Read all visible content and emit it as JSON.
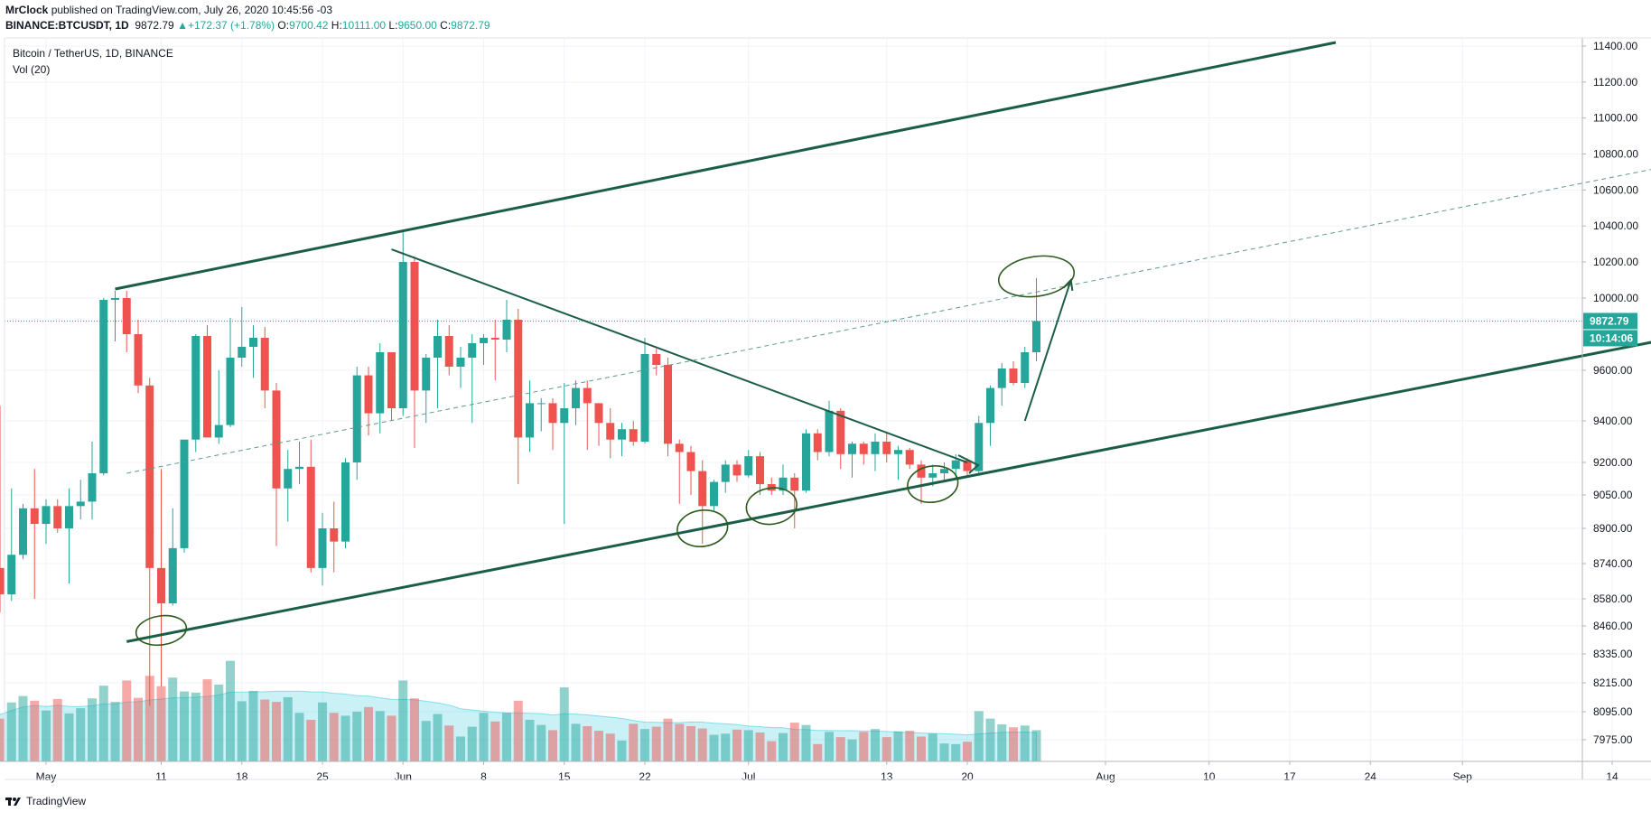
{
  "header": {
    "author": "MrClock",
    "published_text": "published on TradingView.com, July 26, 2020 10:45:56 -03",
    "symbol": "BINANCE:BTCUSDT, 1D",
    "last": "9872.79",
    "change": "+172.37 (+1.78%)",
    "o_label": "O:",
    "o_value": "9700.42",
    "h_label": "H:",
    "h_value": "10111.00",
    "l_label": "L:",
    "l_value": "9650.00",
    "c_label": "C:",
    "c_value": "9872.79"
  },
  "legend": {
    "title": "Bitcoin / TetherUS, 1D, BINANCE",
    "volume": "Vol (20)"
  },
  "price_badge": "9872.79",
  "timer_badge": "10:14:06",
  "footer": {
    "brand": "TradingView"
  },
  "colors": {
    "up": "#26a69a",
    "down": "#ef5350",
    "drawing": "#1b5e48",
    "ma": "#26c6da"
  },
  "chart_data": {
    "type": "candlestick",
    "title": "Bitcoin / TetherUS, 1D, BINANCE",
    "y_ticks": [
      "11400.00",
      "11200.00",
      "11000.00",
      "10800.00",
      "10600.00",
      "10400.00",
      "10200.00",
      "10000.00",
      "9600.00",
      "9400.00",
      "9200.00",
      "9050.00",
      "8900.00",
      "8740.00",
      "8580.00",
      "8460.00",
      "8335.00",
      "8215.00",
      "8095.00",
      "7975.00"
    ],
    "x_ticks": [
      {
        "label": "May",
        "date": "2020-05-01"
      },
      {
        "label": "11",
        "date": "2020-05-11"
      },
      {
        "label": "18",
        "date": "2020-05-18"
      },
      {
        "label": "25",
        "date": "2020-05-25"
      },
      {
        "label": "Jun",
        "date": "2020-06-01"
      },
      {
        "label": "8",
        "date": "2020-06-08"
      },
      {
        "label": "15",
        "date": "2020-06-15"
      },
      {
        "label": "22",
        "date": "2020-06-22"
      },
      {
        "label": "Jul",
        "date": "2020-07-01"
      },
      {
        "label": "13",
        "date": "2020-07-13"
      },
      {
        "label": "20",
        "date": "2020-07-20"
      },
      {
        "label": "Aug",
        "date": "2020-08-01"
      },
      {
        "label": "10",
        "date": "2020-08-10"
      },
      {
        "label": "17",
        "date": "2020-08-17"
      },
      {
        "label": "24",
        "date": "2020-08-24"
      },
      {
        "label": "Sep",
        "date": "2020-09-01"
      },
      {
        "label": "14",
        "date": "2020-09-14"
      }
    ],
    "candles": [
      {
        "d": "2020-04-26",
        "o": 8390,
        "h": 8730,
        "l": 8290,
        "c": 8720
      },
      {
        "d": "2020-04-27",
        "o": 8720,
        "h": 9460,
        "l": 8520,
        "c": 8600
      },
      {
        "d": "2020-04-28",
        "o": 8600,
        "h": 9080,
        "l": 8570,
        "c": 8780
      },
      {
        "d": "2020-04-29",
        "o": 8780,
        "h": 9010,
        "l": 8760,
        "c": 8990
      },
      {
        "d": "2020-04-30",
        "o": 8990,
        "h": 9170,
        "l": 8580,
        "c": 8920
      },
      {
        "d": "2020-05-01",
        "o": 8920,
        "h": 9030,
        "l": 8830,
        "c": 9000
      },
      {
        "d": "2020-05-02",
        "o": 9000,
        "h": 9030,
        "l": 8880,
        "c": 8900
      },
      {
        "d": "2020-05-03",
        "o": 8900,
        "h": 9080,
        "l": 8650,
        "c": 9000
      },
      {
        "d": "2020-05-04",
        "o": 9000,
        "h": 9120,
        "l": 8940,
        "c": 9020
      },
      {
        "d": "2020-05-05",
        "o": 9020,
        "h": 9300,
        "l": 8940,
        "c": 9150
      },
      {
        "d": "2020-05-06",
        "o": 9150,
        "h": 10000,
        "l": 9140,
        "c": 9990
      },
      {
        "d": "2020-05-07",
        "o": 9990,
        "h": 10040,
        "l": 9760,
        "c": 10000
      },
      {
        "d": "2020-05-08",
        "o": 10000,
        "h": 10040,
        "l": 9700,
        "c": 9800
      },
      {
        "d": "2020-05-09",
        "o": 9800,
        "h": 9880,
        "l": 9510,
        "c": 9540
      },
      {
        "d": "2020-05-10",
        "o": 9540,
        "h": 9570,
        "l": 8120,
        "c": 8720
      },
      {
        "d": "2020-05-11",
        "o": 8720,
        "h": 9170,
        "l": 8200,
        "c": 8560
      },
      {
        "d": "2020-05-12",
        "o": 8560,
        "h": 8990,
        "l": 8550,
        "c": 8810
      },
      {
        "d": "2020-05-13",
        "o": 8810,
        "h": 9300,
        "l": 8790,
        "c": 9310
      },
      {
        "d": "2020-05-14",
        "o": 9310,
        "h": 9800,
        "l": 9250,
        "c": 9790
      },
      {
        "d": "2020-05-15",
        "o": 9790,
        "h": 9850,
        "l": 9330,
        "c": 9320
      },
      {
        "d": "2020-05-16",
        "o": 9320,
        "h": 9600,
        "l": 9290,
        "c": 9380
      },
      {
        "d": "2020-05-17",
        "o": 9380,
        "h": 9890,
        "l": 9370,
        "c": 9670
      },
      {
        "d": "2020-05-18",
        "o": 9670,
        "h": 9950,
        "l": 9620,
        "c": 9730
      },
      {
        "d": "2020-05-19",
        "o": 9730,
        "h": 9850,
        "l": 9570,
        "c": 9780
      },
      {
        "d": "2020-05-20",
        "o": 9780,
        "h": 9840,
        "l": 9450,
        "c": 9520
      },
      {
        "d": "2020-05-21",
        "o": 9520,
        "h": 9550,
        "l": 8820,
        "c": 9080
      },
      {
        "d": "2020-05-22",
        "o": 9080,
        "h": 9260,
        "l": 8930,
        "c": 9170
      },
      {
        "d": "2020-05-23",
        "o": 9170,
        "h": 9300,
        "l": 9100,
        "c": 9180
      },
      {
        "d": "2020-05-24",
        "o": 9180,
        "h": 9310,
        "l": 8700,
        "c": 8720
      },
      {
        "d": "2020-05-25",
        "o": 8720,
        "h": 8970,
        "l": 8640,
        "c": 8900
      },
      {
        "d": "2020-05-26",
        "o": 8900,
        "h": 9020,
        "l": 8700,
        "c": 8840
      },
      {
        "d": "2020-05-27",
        "o": 8840,
        "h": 9220,
        "l": 8810,
        "c": 9200
      },
      {
        "d": "2020-05-28",
        "o": 9200,
        "h": 9620,
        "l": 9120,
        "c": 9580
      },
      {
        "d": "2020-05-29",
        "o": 9580,
        "h": 9620,
        "l": 9330,
        "c": 9430
      },
      {
        "d": "2020-05-30",
        "o": 9430,
        "h": 9750,
        "l": 9340,
        "c": 9700
      },
      {
        "d": "2020-05-31",
        "o": 9700,
        "h": 9700,
        "l": 9400,
        "c": 9450
      },
      {
        "d": "2020-06-01",
        "o": 9450,
        "h": 10380,
        "l": 9420,
        "c": 10200
      },
      {
        "d": "2020-06-02",
        "o": 10200,
        "h": 10230,
        "l": 9270,
        "c": 9520
      },
      {
        "d": "2020-06-03",
        "o": 9520,
        "h": 9690,
        "l": 9390,
        "c": 9670
      },
      {
        "d": "2020-06-04",
        "o": 9670,
        "h": 9880,
        "l": 9450,
        "c": 9790
      },
      {
        "d": "2020-06-05",
        "o": 9790,
        "h": 9850,
        "l": 9580,
        "c": 9620
      },
      {
        "d": "2020-06-06",
        "o": 9620,
        "h": 9730,
        "l": 9530,
        "c": 9670
      },
      {
        "d": "2020-06-07",
        "o": 9670,
        "h": 9800,
        "l": 9390,
        "c": 9750
      },
      {
        "d": "2020-06-08",
        "o": 9750,
        "h": 9800,
        "l": 9630,
        "c": 9780
      },
      {
        "d": "2020-06-09",
        "o": 9780,
        "h": 9880,
        "l": 9560,
        "c": 9770
      },
      {
        "d": "2020-06-10",
        "o": 9770,
        "h": 9990,
        "l": 9700,
        "c": 9880
      },
      {
        "d": "2020-06-11",
        "o": 9880,
        "h": 9940,
        "l": 9100,
        "c": 9320
      },
      {
        "d": "2020-06-12",
        "o": 9320,
        "h": 9560,
        "l": 9250,
        "c": 9470
      },
      {
        "d": "2020-06-13",
        "o": 9470,
        "h": 9490,
        "l": 9350,
        "c": 9470
      },
      {
        "d": "2020-06-14",
        "o": 9470,
        "h": 9490,
        "l": 9260,
        "c": 9390
      },
      {
        "d": "2020-06-15",
        "o": 9390,
        "h": 9550,
        "l": 8920,
        "c": 9450
      },
      {
        "d": "2020-06-16",
        "o": 9450,
        "h": 9560,
        "l": 9380,
        "c": 9530
      },
      {
        "d": "2020-06-17",
        "o": 9530,
        "h": 9560,
        "l": 9260,
        "c": 9470
      },
      {
        "d": "2020-06-18",
        "o": 9470,
        "h": 9470,
        "l": 9280,
        "c": 9390
      },
      {
        "d": "2020-06-19",
        "o": 9390,
        "h": 9450,
        "l": 9220,
        "c": 9310
      },
      {
        "d": "2020-06-20",
        "o": 9310,
        "h": 9390,
        "l": 9230,
        "c": 9360
      },
      {
        "d": "2020-06-21",
        "o": 9360,
        "h": 9400,
        "l": 9280,
        "c": 9300
      },
      {
        "d": "2020-06-22",
        "o": 9300,
        "h": 9780,
        "l": 9290,
        "c": 9690
      },
      {
        "d": "2020-06-23",
        "o": 9690,
        "h": 9720,
        "l": 9580,
        "c": 9630
      },
      {
        "d": "2020-06-24",
        "o": 9630,
        "h": 9670,
        "l": 9230,
        "c": 9290
      },
      {
        "d": "2020-06-25",
        "o": 9290,
        "h": 9310,
        "l": 9010,
        "c": 9250
      },
      {
        "d": "2020-06-26",
        "o": 9250,
        "h": 9280,
        "l": 9050,
        "c": 9160
      },
      {
        "d": "2020-06-27",
        "o": 9160,
        "h": 9210,
        "l": 8830,
        "c": 9000
      },
      {
        "d": "2020-06-28",
        "o": 9000,
        "h": 9120,
        "l": 8980,
        "c": 9110
      },
      {
        "d": "2020-06-29",
        "o": 9110,
        "h": 9210,
        "l": 9060,
        "c": 9190
      },
      {
        "d": "2020-06-30",
        "o": 9190,
        "h": 9210,
        "l": 9110,
        "c": 9140
      },
      {
        "d": "2020-07-01",
        "o": 9140,
        "h": 9260,
        "l": 9130,
        "c": 9230
      },
      {
        "d": "2020-07-02",
        "o": 9230,
        "h": 9250,
        "l": 9050,
        "c": 9100
      },
      {
        "d": "2020-07-03",
        "o": 9100,
        "h": 9130,
        "l": 9050,
        "c": 9070
      },
      {
        "d": "2020-07-04",
        "o": 9070,
        "h": 9190,
        "l": 9050,
        "c": 9130
      },
      {
        "d": "2020-07-05",
        "o": 9130,
        "h": 9150,
        "l": 8900,
        "c": 9070
      },
      {
        "d": "2020-07-06",
        "o": 9070,
        "h": 9360,
        "l": 9060,
        "c": 9340
      },
      {
        "d": "2020-07-07",
        "o": 9340,
        "h": 9360,
        "l": 9210,
        "c": 9250
      },
      {
        "d": "2020-07-08",
        "o": 9250,
        "h": 9480,
        "l": 9230,
        "c": 9440
      },
      {
        "d": "2020-07-09",
        "o": 9440,
        "h": 9450,
        "l": 9170,
        "c": 9240
      },
      {
        "d": "2020-07-10",
        "o": 9240,
        "h": 9300,
        "l": 9130,
        "c": 9290
      },
      {
        "d": "2020-07-11",
        "o": 9290,
        "h": 9300,
        "l": 9190,
        "c": 9240
      },
      {
        "d": "2020-07-12",
        "o": 9240,
        "h": 9340,
        "l": 9160,
        "c": 9300
      },
      {
        "d": "2020-07-13",
        "o": 9300,
        "h": 9340,
        "l": 9200,
        "c": 9240
      },
      {
        "d": "2020-07-14",
        "o": 9240,
        "h": 9280,
        "l": 9120,
        "c": 9260
      },
      {
        "d": "2020-07-15",
        "o": 9260,
        "h": 9270,
        "l": 9170,
        "c": 9190
      },
      {
        "d": "2020-07-16",
        "o": 9190,
        "h": 9210,
        "l": 9010,
        "c": 9130
      },
      {
        "d": "2020-07-17",
        "o": 9130,
        "h": 9190,
        "l": 9090,
        "c": 9150
      },
      {
        "d": "2020-07-18",
        "o": 9150,
        "h": 9200,
        "l": 9120,
        "c": 9170
      },
      {
        "d": "2020-07-19",
        "o": 9170,
        "h": 9240,
        "l": 9120,
        "c": 9210
      },
      {
        "d": "2020-07-20",
        "o": 9210,
        "h": 9220,
        "l": 9140,
        "c": 9160
      },
      {
        "d": "2020-07-21",
        "o": 9160,
        "h": 9420,
        "l": 9150,
        "c": 9390
      },
      {
        "d": "2020-07-22",
        "o": 9390,
        "h": 9540,
        "l": 9280,
        "c": 9530
      },
      {
        "d": "2020-07-23",
        "o": 9530,
        "h": 9640,
        "l": 9460,
        "c": 9610
      },
      {
        "d": "2020-07-24",
        "o": 9610,
        "h": 9650,
        "l": 9540,
        "c": 9550
      },
      {
        "d": "2020-07-25",
        "o": 9550,
        "h": 9730,
        "l": 9530,
        "c": 9700
      },
      {
        "d": "2020-07-26",
        "o": 9700,
        "h": 10111,
        "l": 9650,
        "c": 9872.79
      }
    ],
    "volume_series": "Vol (20)",
    "volumes": [
      8.8,
      7.4,
      10.2,
      11.3,
      10.5,
      8.8,
      10.8,
      8.3,
      9.2,
      10.9,
      13.1,
      10.3,
      14.0,
      11.0,
      14.8,
      13.0,
      14.5,
      12.1,
      11.9,
      14.2,
      13.3,
      17.4,
      10.4,
      12.2,
      10.7,
      10.3,
      11.1,
      8.4,
      7.2,
      10.2,
      8.4,
      7.9,
      8.6,
      9.4,
      8.7,
      7.9,
      14.0,
      10.9,
      7.0,
      8.2,
      6.2,
      4.3,
      6.0,
      8.4,
      6.9,
      8.4,
      10.5,
      7.2,
      6.3,
      5.4,
      12.8,
      6.5,
      6.1,
      5.3,
      4.8,
      3.6,
      6.5,
      5.6,
      6.0,
      7.4,
      6.5,
      6.1,
      5.7,
      4.6,
      4.8,
      5.5,
      5.4,
      5.0,
      3.5,
      4.9,
      6.7,
      6.3,
      3.0,
      5.1,
      4.2,
      3.8,
      5.1,
      5.6,
      4.2,
      5.2,
      5.3,
      4.3,
      4.8,
      3.1,
      3.0,
      3.4,
      8.7,
      7.4,
      6.4,
      5.9,
      6.2,
      5.4
    ],
    "annotations": [
      {
        "kind": "line",
        "from": {
          "d": "2020-05-07",
          "p": 10050
        },
        "to": {
          "d": "2020-08-21",
          "p": 11420
        }
      },
      {
        "kind": "line",
        "from": {
          "d": "2020-05-08",
          "p": 8390
        },
        "to": {
          "d": "2020-09-21",
          "p": 9800
        }
      },
      {
        "kind": "line",
        "from": {
          "d": "2020-05-31",
          "p": 10270
        },
        "to": {
          "d": "2020-07-20",
          "p": 9200
        }
      },
      {
        "kind": "dashed",
        "from": {
          "d": "2020-05-08",
          "p": 9150
        },
        "to": {
          "d": "2020-09-21",
          "p": 10760
        }
      },
      {
        "kind": "arrow",
        "from": {
          "d": "2020-07-25",
          "p": 9400
        },
        "to": {
          "d": "2020-07-29",
          "p": 10100
        }
      }
    ],
    "highlights": [
      {
        "d": "2020-05-11",
        "p": 8440
      },
      {
        "d": "2020-06-27",
        "p": 8900
      },
      {
        "d": "2020-07-03",
        "p": 9000
      },
      {
        "d": "2020-07-17",
        "p": 9100
      },
      {
        "d": "2020-07-26",
        "p": 10120
      }
    ]
  }
}
